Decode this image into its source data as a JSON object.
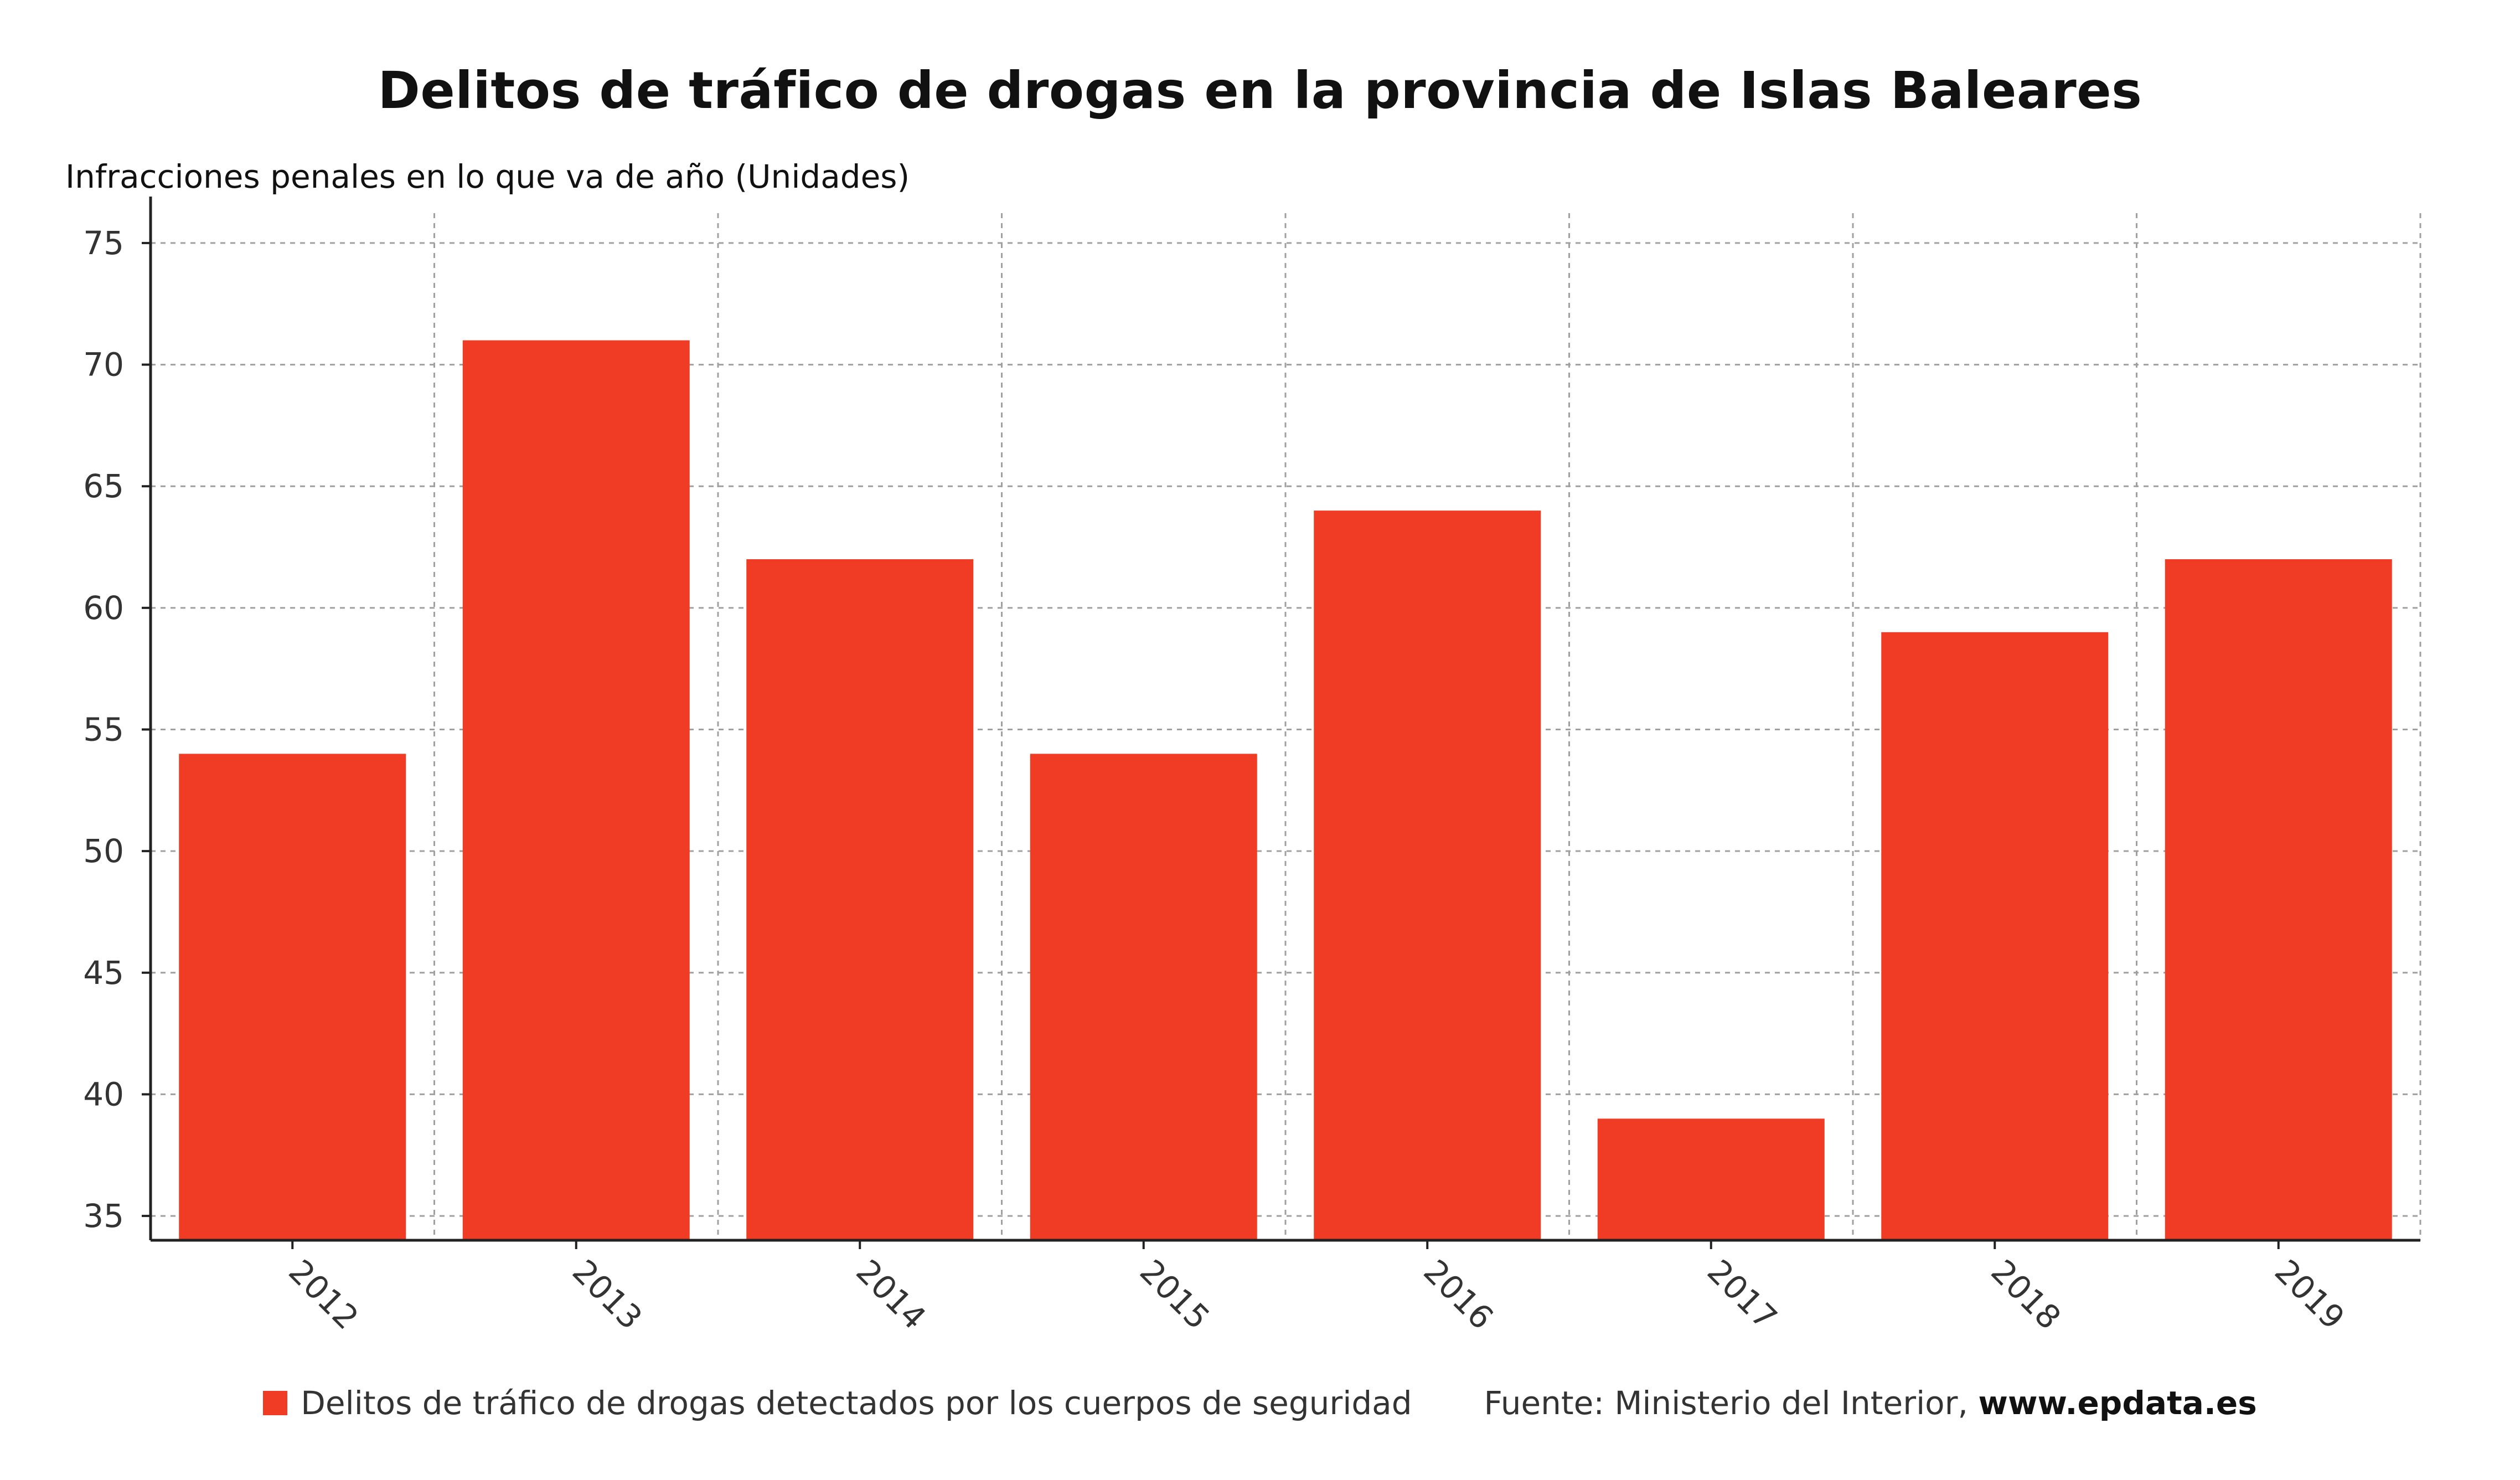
{
  "title": "Delitos de tráfico de drogas en la provincia de Islas Baleares",
  "y_axis_label": "Infracciones penales en lo que va de año (Unidades)",
  "legend": {
    "series_label": "Delitos de tráfico de drogas detectados por los cuerpos de seguridad",
    "source_prefix": "Fuente: Ministerio del Interior, ",
    "source_url": "www.epdata.es"
  },
  "colors": {
    "bar": "#f03c24",
    "grid": "#a0a0a0",
    "axis": "#222222",
    "tick_label": "#333333"
  },
  "chart_data": {
    "type": "bar",
    "title": "Delitos de tráfico de drogas en la provincia de Islas Baleares",
    "ylabel": "Infracciones penales en lo que va de año (Unidades)",
    "xlabel": "",
    "categories": [
      "2012",
      "2013",
      "2014",
      "2015",
      "2016",
      "2017",
      "2018",
      "2019"
    ],
    "series": [
      {
        "name": "Delitos de tráfico de drogas detectados por los cuerpos de seguridad",
        "values": [
          54,
          71,
          62,
          54,
          64,
          39,
          59,
          62
        ]
      }
    ],
    "ylim": [
      34,
      76
    ],
    "yticks": [
      35,
      40,
      45,
      50,
      55,
      60,
      65,
      70,
      75
    ],
    "grid": true,
    "legend_position": "bottom"
  }
}
